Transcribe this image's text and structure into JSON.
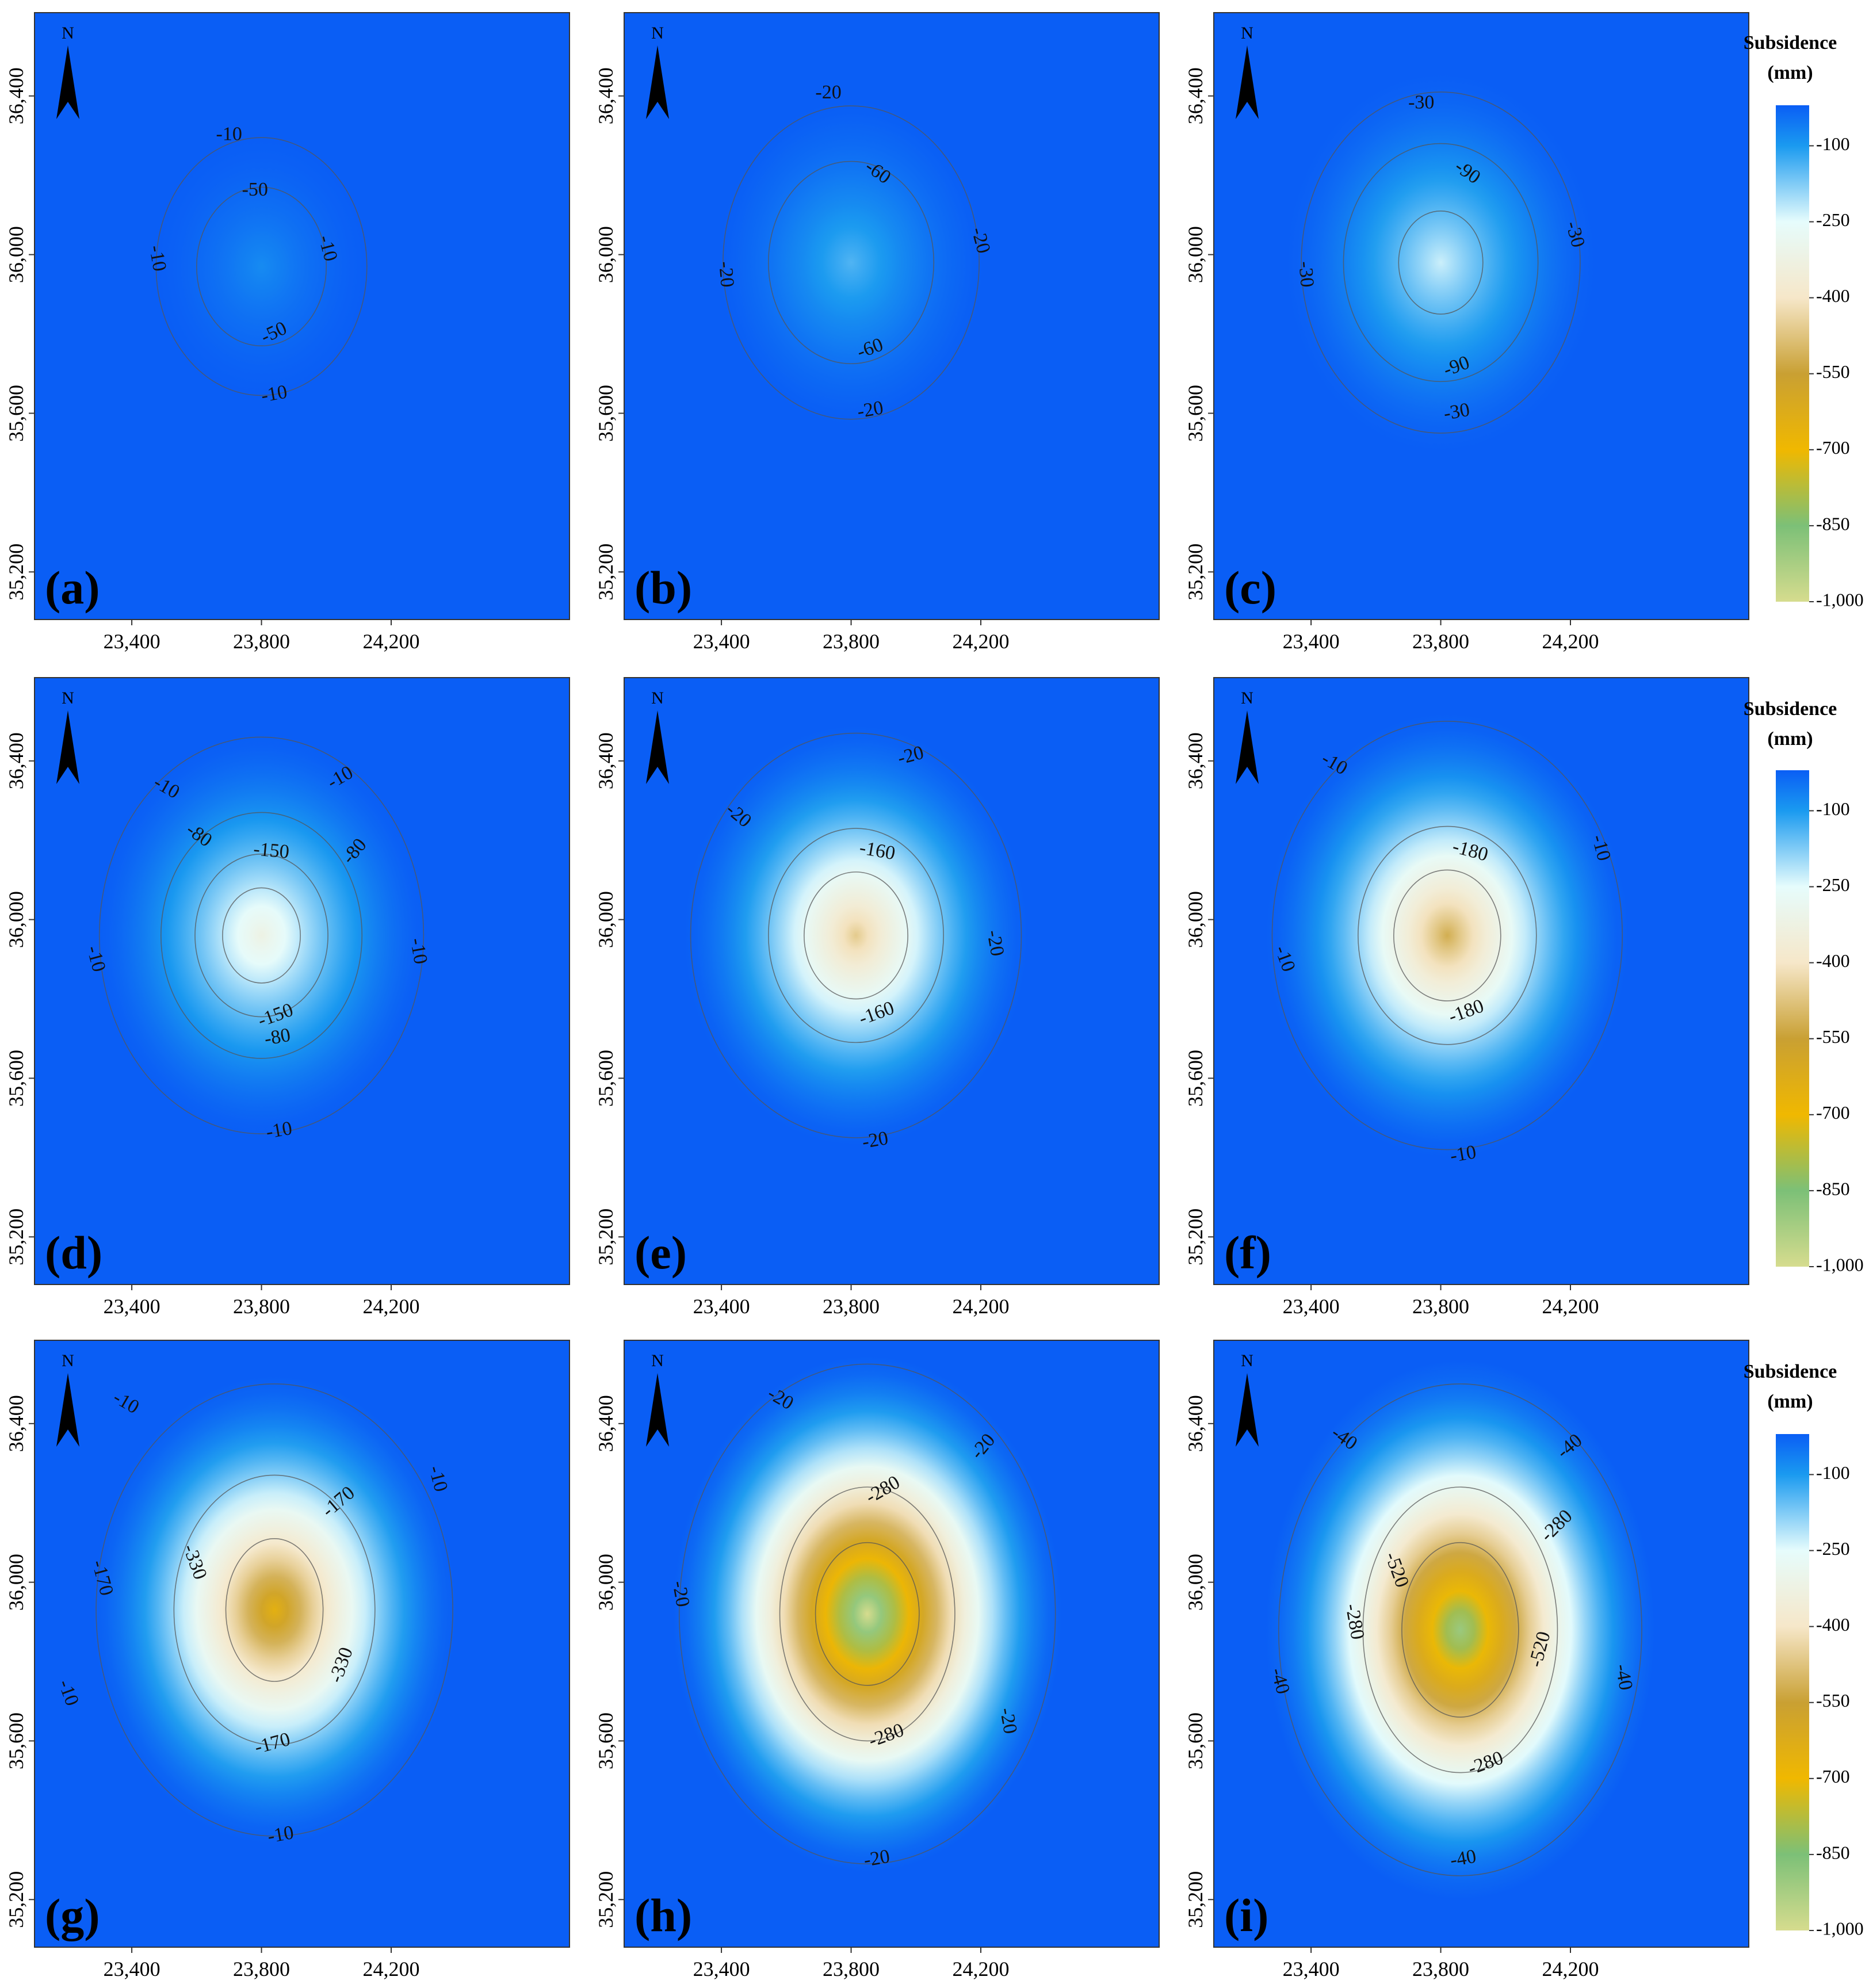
{
  "chart_data": {
    "type": "heatmap",
    "description_units": "Subsidence contour maps, x = easting (m), y = northing (m), z = subsidence (mm)",
    "shared_axes": {
      "xlim": [
        23100,
        24750
      ],
      "ylim": [
        35080,
        36610
      ],
      "xticks": [
        23400,
        23800,
        24200
      ],
      "xtick_labels": [
        "23,400",
        "23,800",
        "24,200"
      ],
      "yticks": [
        35200,
        35600,
        36000,
        36400
      ],
      "ytick_labels": [
        "35,200",
        "35,600",
        "36,000",
        "36,400"
      ],
      "grid": false
    },
    "north_label": "N",
    "colorbar": {
      "title_line1": "Subsidence",
      "title_line2": "(mm)",
      "range": [
        -1000,
        -20
      ],
      "ticks": [
        -100,
        -250,
        -400,
        -550,
        -700,
        -850,
        -1000
      ],
      "tick_labels": [
        "-100",
        "-250",
        "-400",
        "-550",
        "-700",
        "-850",
        "-1,000"
      ],
      "stops": [
        {
          "value": -20,
          "color": "#0a5ef5"
        },
        {
          "value": -100,
          "color": "#1a9af0"
        },
        {
          "value": -250,
          "color": "#e6fcfc"
        },
        {
          "value": -400,
          "color": "#f6e7c9"
        },
        {
          "value": -550,
          "color": "#c9a033"
        },
        {
          "value": -700,
          "color": "#f0b800"
        },
        {
          "value": -850,
          "color": "#7cc077"
        },
        {
          "value": -1000,
          "color": "#d6dc8e"
        }
      ],
      "placement": "right of each row"
    },
    "panels": [
      {
        "label": "(a)",
        "center": [
          23800,
          35970
        ],
        "radius_x": 325,
        "radius_y": 325,
        "max_subsidence": -80,
        "contours": [
          {
            "level": -10,
            "radius_x": 325,
            "radius_y": 325,
            "labels": [
              [
                "-10",
                23700,
                36300,
                0
              ],
              [
                "-10",
                24000,
                36015,
                75
              ],
              [
                "-10",
                23475,
                35990,
                80
              ],
              [
                "-10",
                23840,
                35645,
                -10
              ]
            ]
          },
          {
            "level": -50,
            "radius_x": 200,
            "radius_y": 200,
            "labels": [
              [
                "-50",
                23780,
                36160,
                0
              ],
              [
                "-50",
                23840,
                35800,
                -25
              ]
            ]
          }
        ]
      },
      {
        "label": "(b)",
        "center": [
          23800,
          35980
        ],
        "radius_x": 420,
        "radius_y": 420,
        "max_subsidence": -140,
        "contours": [
          {
            "level": -20,
            "radius_x": 395,
            "radius_y": 395,
            "labels": [
              [
                "-20",
                23730,
                36405,
                0
              ],
              [
                "-20",
                24195,
                36035,
                75
              ],
              [
                "-20",
                23410,
                35950,
                85
              ],
              [
                "-20",
                23860,
                35605,
                -10
              ]
            ]
          },
          {
            "level": -60,
            "radius_x": 255,
            "radius_y": 255,
            "labels": [
              [
                "-60",
                23880,
                36205,
                35
              ],
              [
                "-60",
                23860,
                35760,
                -20
              ]
            ]
          }
        ]
      },
      {
        "label": "(c)",
        "center": [
          23800,
          35980
        ],
        "radius_x": 480,
        "radius_y": 480,
        "max_subsidence": -230,
        "contours": [
          {
            "level": -30,
            "radius_x": 430,
            "radius_y": 430,
            "labels": [
              [
                "-30",
                23740,
                36380,
                0
              ],
              [
                "-30",
                24210,
                36050,
                75
              ],
              [
                "-30",
                23380,
                35950,
                85
              ],
              [
                "-30",
                23850,
                35600,
                -10
              ]
            ]
          },
          {
            "level": -90,
            "radius_x": 300,
            "radius_y": 300,
            "labels": [
              [
                "-90",
                23880,
                36205,
                35
              ],
              [
                "-90",
                23850,
                35715,
                -20
              ]
            ]
          },
          {
            "level": -200,
            "radius_x": 130,
            "radius_y": 130,
            "labels": []
          }
        ]
      }
    ],
    "panels_row2": [
      {
        "label": "(d)",
        "center": [
          23800,
          35960
        ],
        "radius_x": 510,
        "radius_y": 510,
        "max_subsidence": -320,
        "contours": [
          {
            "level": -10,
            "radius_x": 500,
            "radius_y": 500,
            "labels": [
              [
                "-10",
                23505,
                36330,
                30
              ],
              [
                "-10",
                24045,
                36355,
                -30
              ],
              [
                "-10",
                24280,
                35920,
                80
              ],
              [
                "-10",
                23285,
                35900,
                75
              ],
              [
                "-10",
                23855,
                35465,
                -10
              ]
            ]
          },
          {
            "level": -80,
            "radius_x": 310,
            "radius_y": 310,
            "labels": [
              [
                "-80",
                23605,
                36210,
                35
              ],
              [
                "-80",
                24090,
                36170,
                -50
              ],
              [
                "-80",
                23850,
                35700,
                -10
              ]
            ]
          },
          {
            "level": -150,
            "radius_x": 205,
            "radius_y": 205,
            "labels": [
              [
                "-150",
                23830,
                36170,
                5
              ],
              [
                "-150",
                23845,
                35755,
                -20
              ]
            ]
          },
          {
            "level": -250,
            "radius_x": 120,
            "radius_y": 120,
            "labels": []
          }
        ]
      },
      {
        "label": "(e)",
        "center": [
          23815,
          35960
        ],
        "radius_x": 530,
        "radius_y": 530,
        "max_subsidence": -460,
        "contours": [
          {
            "level": -20,
            "radius_x": 510,
            "radius_y": 510,
            "labels": [
              [
                "-20",
                23985,
                36410,
                -15
              ],
              [
                "-20",
                23450,
                36260,
                40
              ],
              [
                "-20",
                24240,
                35940,
                80
              ],
              [
                "-20",
                23875,
                35440,
                -10
              ]
            ]
          },
          {
            "level": -160,
            "radius_x": 270,
            "radius_y": 270,
            "labels": [
              [
                "-160",
                23880,
                36170,
                10
              ],
              [
                "-160",
                23880,
                35760,
                -20
              ]
            ]
          },
          {
            "level": -300,
            "radius_x": 160,
            "radius_y": 160,
            "labels": []
          }
        ]
      },
      {
        "label": "(f)",
        "center": [
          23820,
          35960
        ],
        "radius_x": 560,
        "radius_y": 560,
        "max_subsidence": -520,
        "contours": [
          {
            "level": -10,
            "radius_x": 540,
            "radius_y": 540,
            "labels": [
              [
                "-10",
                23470,
                36390,
                30
              ],
              [
                "-10",
                24290,
                36180,
                75
              ],
              [
                "-10",
                23315,
                35900,
                70
              ],
              [
                "-10",
                23870,
                35405,
                -10
              ]
            ]
          },
          {
            "level": -180,
            "radius_x": 275,
            "radius_y": 275,
            "labels": [
              [
                "-180",
                23890,
                36170,
                15
              ],
              [
                "-180",
                23880,
                35765,
                -20
              ]
            ]
          },
          {
            "level": -350,
            "radius_x": 165,
            "radius_y": 165,
            "labels": []
          }
        ]
      }
    ],
    "panels_row3": [
      {
        "label": "(g)",
        "center": [
          23840,
          35930
        ],
        "radius_x": 560,
        "radius_y": 590,
        "max_subsidence": -650,
        "contours": [
          {
            "level": -10,
            "radius_x": 550,
            "radius_y": 570,
            "labels": [
              [
                "-10",
                23380,
                36450,
                30
              ],
              [
                "-10",
                24340,
                36260,
                75
              ],
              [
                "-10",
                23200,
                35720,
                70
              ],
              [
                "-10",
                23860,
                35360,
                -10
              ]
            ]
          },
          {
            "level": -170,
            "radius_x": 310,
            "radius_y": 340,
            "labels": [
              [
                "-170",
                23305,
                36010,
                75
              ],
              [
                "-170",
                24040,
                36200,
                -40
              ],
              [
                "-170",
                23835,
                35590,
                -15
              ]
            ]
          },
          {
            "level": -330,
            "radius_x": 150,
            "radius_y": 180,
            "labels": [
              [
                "-330",
                23590,
                36050,
                70
              ],
              [
                "-330",
                24050,
                35790,
                -70
              ]
            ]
          }
        ]
      },
      {
        "label": "(h)",
        "center": [
          23850,
          35920
        ],
        "radius_x": 600,
        "radius_y": 650,
        "max_subsidence": -1000,
        "contours": [
          {
            "level": -20,
            "radius_x": 580,
            "radius_y": 630,
            "labels": [
              [
                "-20",
                23580,
                36460,
                30
              ],
              [
                "-20",
                24210,
                36340,
                -50
              ],
              [
                "-20",
                23270,
                35970,
                80
              ],
              [
                "-20",
                24280,
                35650,
                80
              ],
              [
                "-20",
                23880,
                35300,
                -10
              ]
            ]
          },
          {
            "level": -280,
            "radius_x": 270,
            "radius_y": 320,
            "labels": [
              [
                "-280",
                23900,
                36230,
                -30
              ],
              [
                "-280",
                23910,
                35610,
                -20
              ]
            ]
          },
          {
            "level": -600,
            "radius_x": 160,
            "radius_y": 180,
            "labels": []
          }
        ]
      },
      {
        "label": "(i)",
        "center": [
          23860,
          35880
        ],
        "radius_x": 600,
        "radius_y": 680,
        "max_subsidence": -900,
        "contours": [
          {
            "level": -40,
            "radius_x": 560,
            "radius_y": 620,
            "labels": [
              [
                "-40",
                23500,
                36360,
                35
              ],
              [
                "-40",
                24200,
                36340,
                -40
              ],
              [
                "-40",
                23300,
                35750,
                75
              ],
              [
                "-40",
                24360,
                35760,
                80
              ],
              [
                "-40",
                23870,
                35300,
                -10
              ]
            ]
          },
          {
            "level": -280,
            "radius_x": 300,
            "radius_y": 360,
            "labels": [
              [
                "-280",
                24160,
                36140,
                -45
              ],
              [
                "-280",
                23530,
                35900,
                80
              ],
              [
                "-280",
                23940,
                35540,
                -20
              ]
            ]
          },
          {
            "level": -520,
            "radius_x": 180,
            "radius_y": 220,
            "labels": [
              [
                "-520",
                23660,
                36030,
                70
              ],
              [
                "-520",
                24110,
                35830,
                -75
              ]
            ]
          }
        ]
      }
    ]
  }
}
